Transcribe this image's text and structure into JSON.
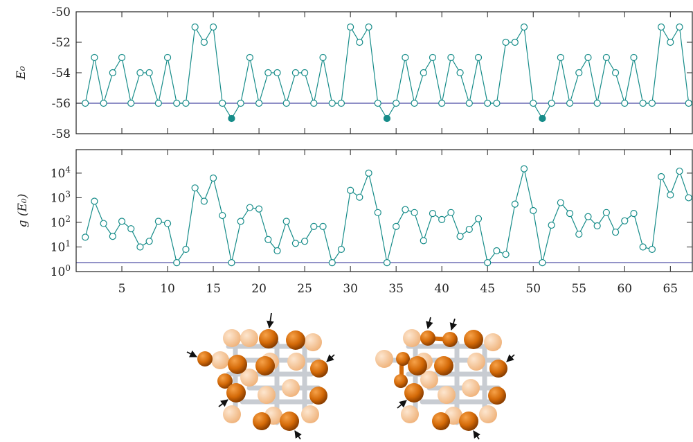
{
  "chart_data": [
    {
      "type": "line",
      "ylabel": "E₀",
      "x": [
        1,
        2,
        3,
        4,
        5,
        6,
        7,
        8,
        9,
        10,
        11,
        12,
        13,
        14,
        15,
        16,
        17,
        18,
        19,
        20,
        21,
        22,
        23,
        24,
        25,
        26,
        27,
        28,
        29,
        30,
        31,
        32,
        33,
        34,
        35,
        36,
        37,
        38,
        39,
        40,
        41,
        42,
        43,
        44,
        45,
        46,
        47,
        48,
        49,
        50,
        51,
        52,
        53,
        54,
        55,
        56,
        57,
        58,
        59,
        60,
        61,
        62,
        63,
        64,
        65,
        66,
        67
      ],
      "values": [
        -56,
        -53,
        -56,
        -54,
        -53,
        -56,
        -54,
        -54,
        -56,
        -53,
        -56,
        -56,
        -51,
        -52,
        -51,
        -56,
        -57,
        -56,
        -53,
        -56,
        -54,
        -54,
        -56,
        -54,
        -54,
        -56,
        -53,
        -56,
        -56,
        -51,
        -52,
        -51,
        -56,
        -57,
        -56,
        -53,
        -56,
        -54,
        -53,
        -56,
        -53,
        -54,
        -56,
        -53,
        -56,
        -56,
        -52,
        -52,
        -51,
        -56,
        -57,
        -56,
        -53,
        -56,
        -54,
        -53,
        -56,
        -53,
        -54,
        -56,
        -53,
        -56,
        -56,
        -51,
        -52,
        -51,
        -56
      ],
      "filled_x": [
        17,
        34,
        51
      ],
      "color": "#168c89",
      "reference_line": -56,
      "reference_color": "#4b4ba3",
      "xlim": [
        0,
        67.4
      ],
      "xticks": [
        5,
        10,
        15,
        20,
        25,
        30,
        35,
        40,
        45,
        50,
        55,
        60,
        65
      ],
      "ylim": [
        -58,
        -50
      ],
      "yticks": [
        -58,
        -56,
        -54,
        -52,
        -50
      ]
    },
    {
      "type": "line",
      "ylabel": "g (E₀)",
      "yscale": "log",
      "x": [
        1,
        2,
        3,
        4,
        5,
        6,
        7,
        8,
        9,
        10,
        11,
        12,
        13,
        14,
        15,
        16,
        17,
        18,
        19,
        20,
        21,
        22,
        23,
        24,
        25,
        26,
        27,
        28,
        29,
        30,
        31,
        32,
        33,
        34,
        35,
        36,
        37,
        38,
        39,
        40,
        41,
        42,
        43,
        44,
        45,
        46,
        47,
        48,
        49,
        50,
        51,
        52,
        53,
        54,
        55,
        56,
        57,
        58,
        59,
        60,
        61,
        62,
        63,
        64,
        65,
        66,
        67
      ],
      "values": [
        25,
        720,
        90,
        27,
        110,
        55,
        10,
        17,
        110,
        90,
        2.3,
        8,
        2500,
        720,
        6300,
        190,
        2.3,
        110,
        400,
        350,
        20,
        7,
        110,
        14,
        17,
        68,
        68,
        2.3,
        8,
        2000,
        1050,
        10000,
        250,
        2.3,
        68,
        330,
        250,
        18,
        230,
        130,
        250,
        27,
        52,
        140,
        2.3,
        7,
        5,
        550,
        15000,
        300,
        2.3,
        77,
        630,
        230,
        33,
        170,
        72,
        250,
        40,
        115,
        230,
        10,
        8,
        7200,
        1300,
        12000,
        1000
      ],
      "color": "#168c89",
      "reference_line": 2.3,
      "reference_color": "#4b4ba3",
      "xlim": [
        0,
        67.4
      ],
      "xticks": [
        5,
        10,
        15,
        20,
        25,
        30,
        35,
        40,
        45,
        50,
        55,
        60,
        65
      ],
      "ylim": [
        1,
        90000
      ],
      "yticks": [
        {
          "value": 1,
          "label": "10",
          "exponent": "0"
        },
        {
          "value": 10,
          "label": "10",
          "exponent": "1"
        },
        {
          "value": 100,
          "label": "10",
          "exponent": "2"
        },
        {
          "value": 1000,
          "label": "10",
          "exponent": "3"
        },
        {
          "value": 10000,
          "label": "10",
          "exponent": "4"
        }
      ]
    }
  ]
}
